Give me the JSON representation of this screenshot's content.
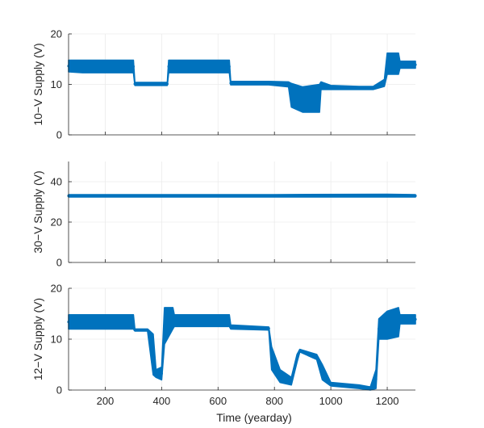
{
  "chart_data": [
    {
      "type": "scatter",
      "ylabel": "10−V Supply (V)",
      "xlabel": "",
      "xlim": [
        70,
        1300
      ],
      "ylim": [
        0,
        20
      ],
      "xticks": [
        200,
        400,
        600,
        800,
        1000,
        1200
      ],
      "xtick_labels_shown": false,
      "yticks": [
        0,
        10,
        20
      ],
      "ytick_labels": [
        "0",
        "10",
        "20"
      ],
      "grid": true,
      "color": "#0072BD",
      "series": [
        {
          "values": [
            [
              70,
              12.5,
              14.8
            ],
            [
              120,
              12.3,
              14.8
            ],
            [
              300,
              12.3,
              14.8
            ],
            [
              305,
              9.8,
              10.4
            ],
            [
              420,
              9.8,
              10.4
            ],
            [
              425,
              12.3,
              14.8
            ],
            [
              640,
              12.3,
              14.8
            ],
            [
              645,
              9.9,
              10.6
            ],
            [
              780,
              9.9,
              10.6
            ],
            [
              850,
              9.5,
              10.5
            ],
            [
              860,
              5.5,
              10.2
            ],
            [
              900,
              4.5,
              9.5
            ],
            [
              960,
              4.5,
              10.0
            ],
            [
              965,
              9.0,
              10.5
            ],
            [
              1000,
              9.0,
              9.8
            ],
            [
              1100,
              9.0,
              9.6
            ],
            [
              1150,
              9.0,
              9.6
            ],
            [
              1190,
              9.6,
              11.0
            ],
            [
              1200,
              12.0,
              16.2
            ],
            [
              1240,
              12.0,
              16.2
            ],
            [
              1245,
              13.2,
              14.6
            ],
            [
              1300,
              13.2,
              14.6
            ]
          ]
        }
      ]
    },
    {
      "type": "scatter",
      "ylabel": "30−V Supply (V)",
      "xlabel": "",
      "xlim": [
        70,
        1300
      ],
      "ylim": [
        0,
        50
      ],
      "xticks": [
        200,
        400,
        600,
        800,
        1000,
        1200
      ],
      "xtick_labels_shown": false,
      "yticks": [
        0,
        20,
        40
      ],
      "ytick_labels": [
        "0",
        "20",
        "40"
      ],
      "grid": true,
      "color": "#0072BD",
      "series": [
        {
          "values": [
            [
              70,
              32.4,
              33.6
            ],
            [
              400,
              32.4,
              33.6
            ],
            [
              800,
              32.4,
              33.6
            ],
            [
              1200,
              32.4,
              33.8
            ],
            [
              1300,
              32.4,
              33.6
            ]
          ]
        }
      ]
    },
    {
      "type": "scatter",
      "ylabel": "12−V Supply (V)",
      "xlabel": "Time (yearday)",
      "xlim": [
        70,
        1300
      ],
      "ylim": [
        0,
        20
      ],
      "xticks": [
        200,
        400,
        600,
        800,
        1000,
        1200
      ],
      "xtick_labels": [
        "200",
        "400",
        "600",
        "800",
        "1000",
        "1200"
      ],
      "yticks": [
        0,
        10,
        20
      ],
      "ytick_labels": [
        "0",
        "10",
        "20"
      ],
      "grid": true,
      "color": "#0072BD",
      "series": [
        {
          "values": [
            [
              70,
              12.0,
              14.8
            ],
            [
              300,
              12.0,
              14.8
            ],
            [
              305,
              11.6,
              12.0
            ],
            [
              350,
              11.6,
              12.0
            ],
            [
              370,
              3.0,
              11.0
            ],
            [
              380,
              2.5,
              4.0
            ],
            [
              400,
              2.0,
              4.5
            ],
            [
              410,
              9.0,
              16.2
            ],
            [
              440,
              12.0,
              16.2
            ],
            [
              445,
              12.5,
              14.8
            ],
            [
              640,
              12.5,
              14.8
            ],
            [
              645,
              12.0,
              12.8
            ],
            [
              780,
              11.8,
              12.4
            ],
            [
              790,
              4.0,
              8.5
            ],
            [
              820,
              1.5,
              4.0
            ],
            [
              860,
              1.0,
              2.5
            ],
            [
              880,
              5.5,
              7.0
            ],
            [
              890,
              7.5,
              8.0
            ],
            [
              950,
              6.0,
              7.0
            ],
            [
              970,
              2.0,
              5.0
            ],
            [
              1000,
              0.8,
              1.5
            ],
            [
              1100,
              0.3,
              1.0
            ],
            [
              1140,
              0.0,
              0.6
            ],
            [
              1160,
              0.3,
              4.0
            ],
            [
              1170,
              10.0,
              14.0
            ],
            [
              1200,
              10.0,
              15.5
            ],
            [
              1240,
              10.5,
              16.2
            ],
            [
              1245,
              13.0,
              14.8
            ],
            [
              1300,
              13.0,
              14.8
            ]
          ]
        }
      ]
    }
  ]
}
